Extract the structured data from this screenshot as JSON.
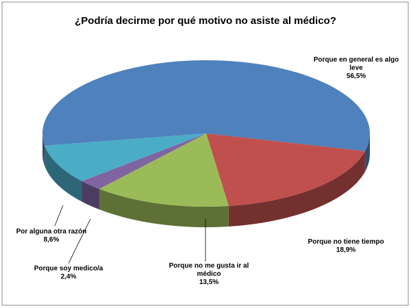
{
  "chart_data": {
    "type": "pie",
    "title": "¿Podría decirme por qué motivo no asiste al médico?",
    "categories": [
      "Porque en general es algo leve",
      "Porque no tiene tiempo",
      "Porque no me gusta ir al médico",
      "Porque soy medico/a",
      "Por alguna otra razón"
    ],
    "values": [
      56.5,
      18.9,
      13.5,
      2.4,
      8.6
    ],
    "value_labels": [
      "56,5%",
      "18,9%",
      "13,5%",
      "2,4%",
      "8,6%"
    ],
    "colors": [
      "#4f81bd",
      "#c0504d",
      "#9bbb59",
      "#8064a2",
      "#4bacc6"
    ]
  }
}
